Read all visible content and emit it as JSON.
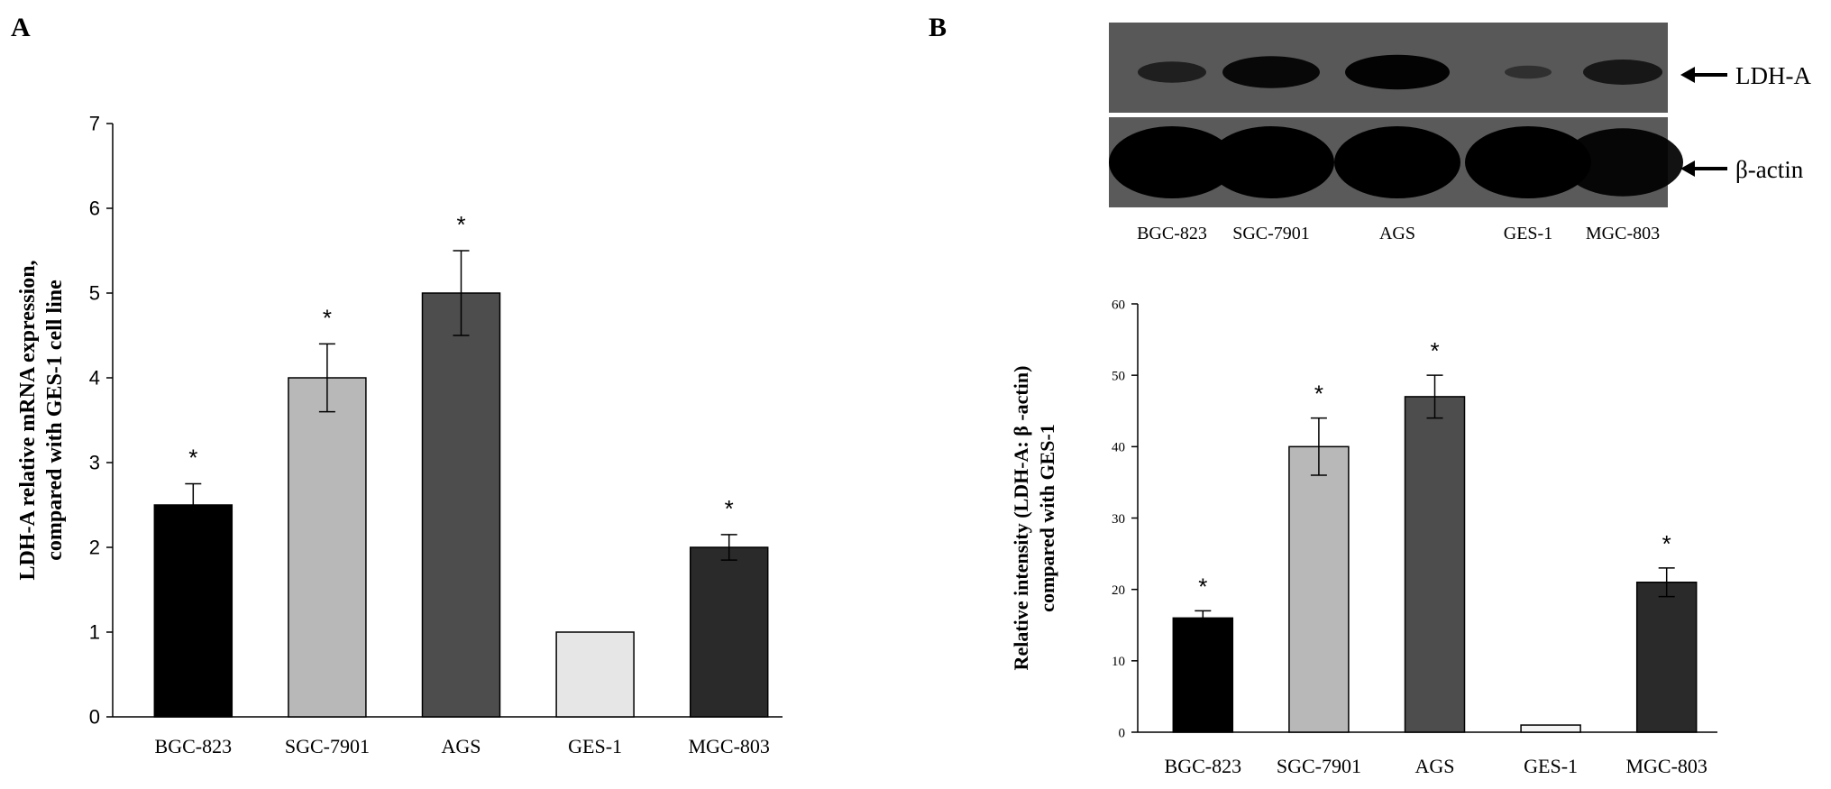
{
  "panels": {
    "a_label": "A",
    "b_label": "B"
  },
  "blot": {
    "band_labels": [
      "LDH-A",
      "β-actin"
    ],
    "lane_labels": [
      "BGC-823",
      "SGC-7901",
      "AGS",
      "GES-1",
      "MGC-803"
    ],
    "ldh_intensity": [
      0.45,
      0.85,
      0.95,
      0.15,
      0.6
    ],
    "actin_intensity": [
      1.0,
      1.0,
      1.0,
      1.0,
      0.85
    ]
  },
  "chart_data": [
    {
      "type": "bar",
      "panel": "A",
      "title": "",
      "xlabel": "",
      "ylabel_lines": [
        "LDH-A relative mRNA  expression,",
        "compared with GES-1 cell line"
      ],
      "categories": [
        "BGC-823",
        "SGC-7901",
        "AGS",
        "GES-1",
        "MGC-803"
      ],
      "values": [
        2.5,
        4.0,
        5.0,
        1.0,
        2.0
      ],
      "errors": [
        0.25,
        0.4,
        0.5,
        0,
        0.15
      ],
      "significance": [
        "*",
        "*",
        "*",
        "",
        "*"
      ],
      "ylim": [
        0,
        7
      ],
      "yticks": [
        0,
        1,
        2,
        3,
        4,
        5,
        6,
        7
      ],
      "colors": [
        "#000000",
        "#b8b8b8",
        "#4d4d4d",
        "#e6e6e6",
        "#2a2a2a"
      ],
      "grid": false
    },
    {
      "type": "bar",
      "panel": "B",
      "title": "",
      "xlabel": "",
      "ylabel_lines": [
        "Relative intensity (LDH-A:  β  -actin)",
        "compared with GES-1"
      ],
      "categories": [
        "BGC-823",
        "SGC-7901",
        "AGS",
        "GES-1",
        "MGC-803"
      ],
      "values": [
        16,
        40,
        47,
        1,
        21
      ],
      "errors": [
        1,
        4,
        3,
        0,
        2
      ],
      "significance": [
        "*",
        "*",
        "*",
        "",
        "*"
      ],
      "ylim": [
        0,
        60
      ],
      "yticks": [
        0,
        10,
        20,
        30,
        40,
        50,
        60
      ],
      "colors": [
        "#000000",
        "#b8b8b8",
        "#4d4d4d",
        "#f4f4f4",
        "#2a2a2a"
      ],
      "grid": false
    }
  ]
}
